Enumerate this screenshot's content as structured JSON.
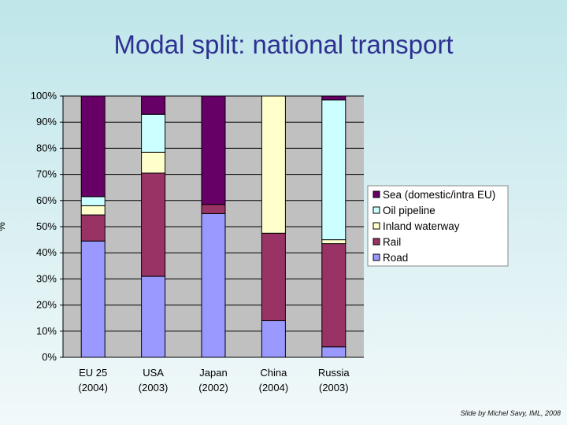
{
  "slide": {
    "title": "Modal split: national transport",
    "footer": "Slide by Michel Savy, IML, 2008"
  },
  "chart_data": {
    "type": "bar",
    "stacked": true,
    "ylabel": "%",
    "ylim": [
      0,
      100
    ],
    "grid": true,
    "legend_position": "right",
    "yticks": [
      "0%",
      "10%",
      "20%",
      "30%",
      "40%",
      "50%",
      "60%",
      "70%",
      "80%",
      "90%",
      "100%"
    ],
    "categories": [
      {
        "name": "EU 25",
        "year": "(2004)"
      },
      {
        "name": "USA",
        "year": "(2003)"
      },
      {
        "name": "Japan",
        "year": "(2002)"
      },
      {
        "name": "China",
        "year": "(2004)"
      },
      {
        "name": "Russia",
        "year": "(2003)"
      }
    ],
    "series": [
      {
        "name": "Road",
        "color": "#9999ff",
        "values": [
          44.5,
          31,
          55,
          14,
          4
        ]
      },
      {
        "name": "Rail",
        "color": "#993366",
        "values": [
          10,
          39.5,
          3.5,
          33.5,
          39.5
        ]
      },
      {
        "name": "Inland waterway",
        "color": "#ffffcc",
        "values": [
          3.5,
          8,
          0,
          52.5,
          1.5
        ]
      },
      {
        "name": "Oil pipeline",
        "color": "#ccffff",
        "values": [
          3.5,
          14.5,
          0,
          0,
          53.5
        ]
      },
      {
        "name": "Sea (domestic/intra EU)",
        "color": "#660066",
        "values": [
          38.5,
          7,
          41.5,
          0,
          1.5
        ]
      }
    ]
  }
}
